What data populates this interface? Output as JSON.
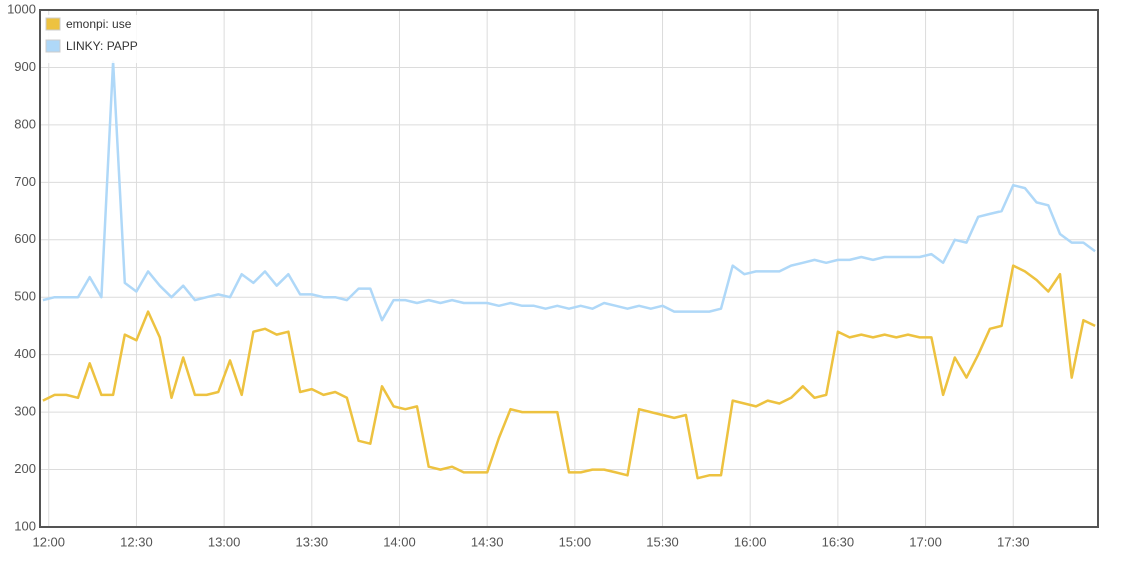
{
  "chart_data": {
    "type": "line",
    "x": [
      "11:58",
      "12:02",
      "12:06",
      "12:10",
      "12:14",
      "12:18",
      "12:22",
      "12:26",
      "12:30",
      "12:34",
      "12:38",
      "12:42",
      "12:46",
      "12:50",
      "12:54",
      "12:58",
      "13:02",
      "13:06",
      "13:10",
      "13:14",
      "13:18",
      "13:22",
      "13:26",
      "13:30",
      "13:34",
      "13:38",
      "13:42",
      "13:46",
      "13:50",
      "13:54",
      "13:58",
      "14:02",
      "14:06",
      "14:10",
      "14:14",
      "14:18",
      "14:22",
      "14:26",
      "14:30",
      "14:34",
      "14:38",
      "14:42",
      "14:46",
      "14:50",
      "14:54",
      "14:58",
      "15:02",
      "15:06",
      "15:10",
      "15:14",
      "15:18",
      "15:22",
      "15:26",
      "15:30",
      "15:34",
      "15:38",
      "15:42",
      "15:46",
      "15:50",
      "15:54",
      "15:58",
      "16:02",
      "16:06",
      "16:10",
      "16:14",
      "16:18",
      "16:22",
      "16:26",
      "16:30",
      "16:34",
      "16:38",
      "16:42",
      "16:46",
      "16:50",
      "16:54",
      "16:58",
      "17:02",
      "17:06",
      "17:10",
      "17:14",
      "17:18",
      "17:22",
      "17:26",
      "17:30",
      "17:34",
      "17:38",
      "17:42",
      "17:46",
      "17:50",
      "17:54",
      "17:58"
    ],
    "series": [
      {
        "name": "emonpi: use",
        "color": "#edc240",
        "values": [
          320,
          330,
          330,
          325,
          385,
          330,
          330,
          435,
          425,
          475,
          430,
          325,
          395,
          330,
          330,
          335,
          390,
          330,
          440,
          445,
          435,
          440,
          335,
          340,
          330,
          335,
          325,
          250,
          245,
          345,
          310,
          305,
          310,
          205,
          200,
          205,
          195,
          195,
          195,
          255,
          305,
          300,
          300,
          300,
          300,
          195,
          195,
          200,
          200,
          195,
          190,
          305,
          300,
          295,
          290,
          295,
          185,
          190,
          190,
          320,
          315,
          310,
          320,
          315,
          325,
          345,
          325,
          330,
          440,
          430,
          435,
          430,
          435,
          430,
          435,
          430,
          430,
          330,
          395,
          360,
          400,
          445,
          450,
          555,
          545,
          530,
          510,
          540,
          360,
          460,
          450
        ]
      },
      {
        "name": "LINKY: PAPP",
        "color": "#afd8f8",
        "values": [
          495,
          500,
          500,
          500,
          535,
          500,
          910,
          525,
          510,
          545,
          520,
          500,
          520,
          495,
          500,
          505,
          500,
          540,
          525,
          545,
          520,
          540,
          505,
          505,
          500,
          500,
          495,
          515,
          515,
          460,
          495,
          495,
          490,
          495,
          490,
          495,
          490,
          490,
          490,
          485,
          490,
          485,
          485,
          480,
          485,
          480,
          485,
          480,
          490,
          485,
          480,
          485,
          480,
          485,
          475,
          475,
          475,
          475,
          480,
          555,
          540,
          545,
          545,
          545,
          555,
          560,
          565,
          560,
          565,
          565,
          570,
          565,
          570,
          570,
          570,
          570,
          575,
          560,
          600,
          595,
          640,
          645,
          650,
          695,
          690,
          665,
          660,
          610,
          595,
          595,
          580
        ]
      }
    ],
    "xlim": [
      "11:57",
      "17:59"
    ],
    "xticks": [
      "12:00",
      "12:30",
      "13:00",
      "13:30",
      "14:00",
      "14:30",
      "15:00",
      "15:30",
      "16:00",
      "16:30",
      "17:00",
      "17:30"
    ],
    "ylim": [
      100,
      1000
    ],
    "yticks": [
      100,
      200,
      300,
      400,
      500,
      600,
      700,
      800,
      900,
      1000
    ],
    "grid": true,
    "legend": "top-left"
  }
}
